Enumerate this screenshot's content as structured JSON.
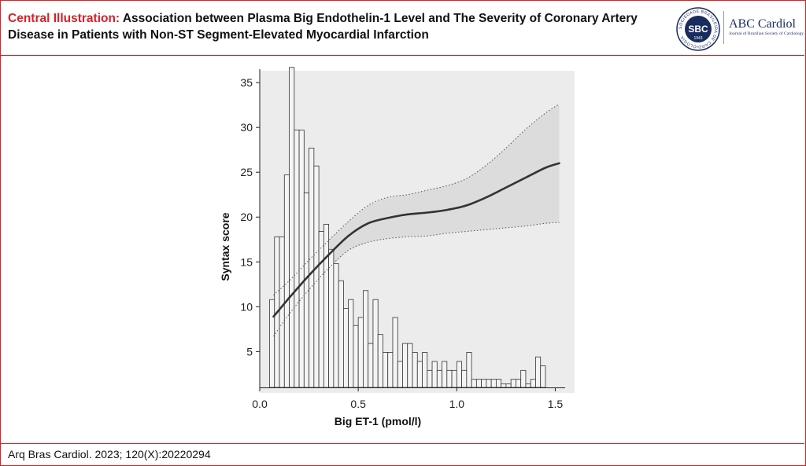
{
  "header": {
    "title_lead": "Central Illustration:",
    "title_rest": "Association between Plasma Big Endothelin-1 Level and The Severity of Coronary Artery Disease in Patients with Non-ST Segment-Elevated Myocardial Infarction",
    "logo_text": "SBC",
    "logo_year": "1943",
    "logo_ring_text": "SOCIEDADE BRASILEIRA DE CARDIOLOGIA",
    "journal": "ABC Cardiol",
    "journal_sub": "Journal of Brazilian Society of Cardiology",
    "brand_color": "#d2232a",
    "journal_color": "#1a2b5e"
  },
  "footer": {
    "citation": "Arq Bras Cardiol. 2023; 120(X):20220294"
  },
  "chart_data": {
    "type": "bar",
    "xlabel": "Big ET-1 (pmol/l)",
    "ylabel": "Syntax score",
    "xlim": [
      0,
      1.55
    ],
    "ylim": [
      1,
      36.5
    ],
    "xticks": [
      "0.0",
      "0.5",
      "1.0",
      "1.5"
    ],
    "xtick_values": [
      0,
      0.5,
      1.0,
      1.5
    ],
    "yticks": [
      "5",
      "10",
      "15",
      "20",
      "25",
      "30",
      "35"
    ],
    "ytick_values": [
      5,
      10,
      15,
      20,
      25,
      30,
      35
    ],
    "grid": false,
    "histogram": {
      "bin_width": 0.025,
      "start": 0.05,
      "heights": [
        9.8,
        16.8,
        16.8,
        23.7,
        35.7,
        28.7,
        28.7,
        21.7,
        26.7,
        24.7,
        17.4,
        18.2,
        15.4,
        13.8,
        11.9,
        8.8,
        9.8,
        6.9,
        7.8,
        10.8,
        4.9,
        9.8,
        5.9,
        3.9,
        3.9,
        7.8,
        2.9,
        4.9,
        4.9,
        3.9,
        2.9,
        3.9,
        1.9,
        2.9,
        1.9,
        2.9,
        1.9,
        1.9,
        2.9,
        1.9,
        3.9,
        0.9,
        0.9,
        0.9,
        0.9,
        0.9,
        0.9,
        0.4,
        0.4,
        0.9,
        0.9,
        1.9,
        0.4,
        0.9,
        3.4,
        2.4
      ]
    },
    "fit_line": {
      "x": [
        0.07,
        0.15,
        0.25,
        0.35,
        0.45,
        0.55,
        0.65,
        0.75,
        0.85,
        0.95,
        1.05,
        1.15,
        1.25,
        1.35,
        1.45,
        1.52
      ],
      "y": [
        8.9,
        11.0,
        13.5,
        15.8,
        17.9,
        19.3,
        19.9,
        20.3,
        20.5,
        20.8,
        21.3,
        22.2,
        23.3,
        24.4,
        25.5,
        26.0
      ],
      "ci_lower": [
        6.7,
        9.2,
        11.9,
        14.3,
        16.3,
        17.2,
        17.6,
        17.8,
        17.9,
        18.2,
        18.4,
        18.6,
        18.8,
        19.0,
        19.3,
        19.4
      ],
      "ci_upper": [
        11.3,
        12.9,
        15.2,
        17.4,
        19.5,
        21.3,
        22.2,
        22.5,
        23.0,
        23.5,
        24.3,
        25.8,
        27.7,
        29.8,
        31.6,
        32.6
      ]
    }
  }
}
